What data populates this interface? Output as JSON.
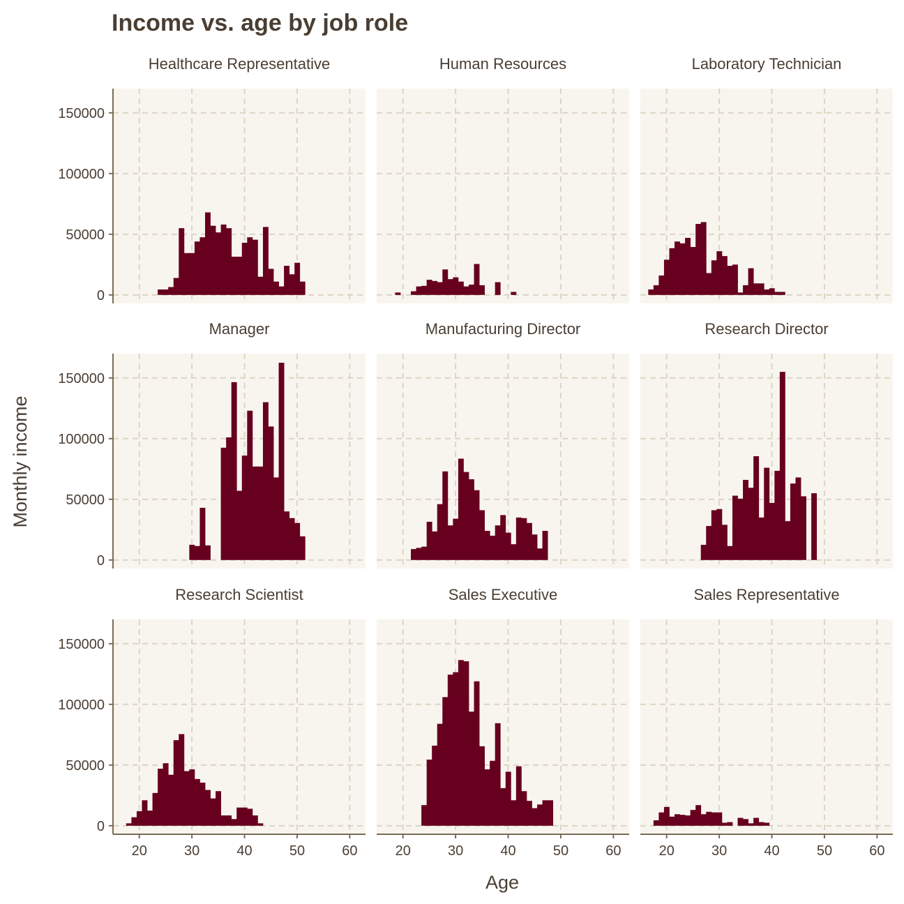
{
  "title": "Income vs. age by job role",
  "colors": {
    "bar": "#67001f",
    "panel_background": "#f8f5ef",
    "grid": "#dcd5c3",
    "axis": "#7a6a55",
    "text": "#4a3e33"
  },
  "chart_data": {
    "type": "bar",
    "title": "Income vs. age by job role",
    "xlabel": "Age",
    "ylabel": "Monthly income",
    "xlim": [
      15,
      63
    ],
    "ylim": [
      -7000,
      170000
    ],
    "x_ticks": [
      20,
      30,
      40,
      50,
      60
    ],
    "y_ticks": [
      0,
      50000,
      100000,
      150000
    ],
    "bin_width": 1,
    "grid": true,
    "panels": [
      {
        "name": "Healthcare Representative",
        "bins": [
          {
            "x": 24,
            "y": 4500
          },
          {
            "x": 25,
            "y": 4500
          },
          {
            "x": 26,
            "y": 6500
          },
          {
            "x": 27,
            "y": 14000
          },
          {
            "x": 28,
            "y": 55000
          },
          {
            "x": 29,
            "y": 34500
          },
          {
            "x": 30,
            "y": 34500
          },
          {
            "x": 31,
            "y": 44000
          },
          {
            "x": 32,
            "y": 47500
          },
          {
            "x": 33,
            "y": 68000
          },
          {
            "x": 34,
            "y": 57000
          },
          {
            "x": 35,
            "y": 51500
          },
          {
            "x": 36,
            "y": 58000
          },
          {
            "x": 37,
            "y": 55000
          },
          {
            "x": 38,
            "y": 31500
          },
          {
            "x": 39,
            "y": 31500
          },
          {
            "x": 40,
            "y": 43000
          },
          {
            "x": 41,
            "y": 47500
          },
          {
            "x": 42,
            "y": 45500
          },
          {
            "x": 43,
            "y": 15000
          },
          {
            "x": 44,
            "y": 56000
          },
          {
            "x": 45,
            "y": 21500
          },
          {
            "x": 46,
            "y": 11000
          },
          {
            "x": 47,
            "y": 7000
          },
          {
            "x": 48,
            "y": 24000
          },
          {
            "x": 49,
            "y": 17000
          },
          {
            "x": 50,
            "y": 26500
          },
          {
            "x": 51,
            "y": 11000
          }
        ]
      },
      {
        "name": "Human Resources",
        "bins": [
          {
            "x": 19,
            "y": 2000
          },
          {
            "x": 22,
            "y": 3000
          },
          {
            "x": 23,
            "y": 7000
          },
          {
            "x": 24,
            "y": 7500
          },
          {
            "x": 25,
            "y": 12500
          },
          {
            "x": 26,
            "y": 11500
          },
          {
            "x": 27,
            "y": 10500
          },
          {
            "x": 28,
            "y": 21000
          },
          {
            "x": 29,
            "y": 13000
          },
          {
            "x": 30,
            "y": 14500
          },
          {
            "x": 31,
            "y": 11000
          },
          {
            "x": 32,
            "y": 7000
          },
          {
            "x": 33,
            "y": 8500
          },
          {
            "x": 34,
            "y": 25500
          },
          {
            "x": 35,
            "y": 8000
          },
          {
            "x": 38,
            "y": 10500
          },
          {
            "x": 41,
            "y": 2500
          }
        ]
      },
      {
        "name": "Laboratory Technician",
        "bins": [
          {
            "x": 17,
            "y": 4500
          },
          {
            "x": 18,
            "y": 8000
          },
          {
            "x": 19,
            "y": 16000
          },
          {
            "x": 20,
            "y": 29000
          },
          {
            "x": 21,
            "y": 38500
          },
          {
            "x": 22,
            "y": 44000
          },
          {
            "x": 23,
            "y": 42500
          },
          {
            "x": 24,
            "y": 47000
          },
          {
            "x": 25,
            "y": 39500
          },
          {
            "x": 26,
            "y": 58500
          },
          {
            "x": 27,
            "y": 60000
          },
          {
            "x": 28,
            "y": 18000
          },
          {
            "x": 29,
            "y": 28500
          },
          {
            "x": 30,
            "y": 36000
          },
          {
            "x": 31,
            "y": 32000
          },
          {
            "x": 32,
            "y": 24000
          },
          {
            "x": 33,
            "y": 25000
          },
          {
            "x": 34,
            "y": 2000
          },
          {
            "x": 35,
            "y": 8000
          },
          {
            "x": 36,
            "y": 22000
          },
          {
            "x": 37,
            "y": 9500
          },
          {
            "x": 38,
            "y": 9500
          },
          {
            "x": 39,
            "y": 4500
          },
          {
            "x": 40,
            "y": 5500
          },
          {
            "x": 41,
            "y": 2500
          },
          {
            "x": 42,
            "y": 2500
          }
        ]
      },
      {
        "name": "Manager",
        "bins": [
          {
            "x": 30,
            "y": 12500
          },
          {
            "x": 31,
            "y": 11500
          },
          {
            "x": 32,
            "y": 43000
          },
          {
            "x": 33,
            "y": 12000
          },
          {
            "x": 36,
            "y": 92500
          },
          {
            "x": 37,
            "y": 101000
          },
          {
            "x": 38,
            "y": 146500
          },
          {
            "x": 39,
            "y": 57000
          },
          {
            "x": 40,
            "y": 86000
          },
          {
            "x": 41,
            "y": 123000
          },
          {
            "x": 42,
            "y": 77000
          },
          {
            "x": 43,
            "y": 77000
          },
          {
            "x": 44,
            "y": 130000
          },
          {
            "x": 45,
            "y": 110000
          },
          {
            "x": 46,
            "y": 68000
          },
          {
            "x": 47,
            "y": 162500
          },
          {
            "x": 48,
            "y": 40000
          },
          {
            "x": 49,
            "y": 34500
          },
          {
            "x": 50,
            "y": 30500
          },
          {
            "x": 51,
            "y": 19500
          }
        ]
      },
      {
        "name": "Manufacturing Director",
        "bins": [
          {
            "x": 22,
            "y": 9000
          },
          {
            "x": 23,
            "y": 10000
          },
          {
            "x": 24,
            "y": 11000
          },
          {
            "x": 25,
            "y": 31500
          },
          {
            "x": 26,
            "y": 23500
          },
          {
            "x": 27,
            "y": 46000
          },
          {
            "x": 28,
            "y": 73000
          },
          {
            "x": 29,
            "y": 28500
          },
          {
            "x": 30,
            "y": 34000
          },
          {
            "x": 31,
            "y": 83500
          },
          {
            "x": 32,
            "y": 72500
          },
          {
            "x": 33,
            "y": 66500
          },
          {
            "x": 34,
            "y": 57500
          },
          {
            "x": 35,
            "y": 41000
          },
          {
            "x": 36,
            "y": 24000
          },
          {
            "x": 37,
            "y": 20000
          },
          {
            "x": 38,
            "y": 28500
          },
          {
            "x": 39,
            "y": 37000
          },
          {
            "x": 40,
            "y": 22500
          },
          {
            "x": 41,
            "y": 13000
          },
          {
            "x": 42,
            "y": 35000
          },
          {
            "x": 43,
            "y": 34500
          },
          {
            "x": 44,
            "y": 30500
          },
          {
            "x": 45,
            "y": 21000
          },
          {
            "x": 46,
            "y": 9500
          },
          {
            "x": 47,
            "y": 24000
          }
        ]
      },
      {
        "name": "Research Director",
        "bins": [
          {
            "x": 27,
            "y": 12500
          },
          {
            "x": 28,
            "y": 28000
          },
          {
            "x": 29,
            "y": 41000
          },
          {
            "x": 30,
            "y": 42000
          },
          {
            "x": 31,
            "y": 29000
          },
          {
            "x": 32,
            "y": 11500
          },
          {
            "x": 33,
            "y": 53000
          },
          {
            "x": 34,
            "y": 50500
          },
          {
            "x": 35,
            "y": 66000
          },
          {
            "x": 36,
            "y": 59500
          },
          {
            "x": 37,
            "y": 85500
          },
          {
            "x": 38,
            "y": 35000
          },
          {
            "x": 39,
            "y": 76000
          },
          {
            "x": 40,
            "y": 47000
          },
          {
            "x": 41,
            "y": 73500
          },
          {
            "x": 42,
            "y": 155000
          },
          {
            "x": 43,
            "y": 32000
          },
          {
            "x": 44,
            "y": 63000
          },
          {
            "x": 45,
            "y": 68000
          },
          {
            "x": 46,
            "y": 52500
          },
          {
            "x": 48,
            "y": 55000
          }
        ]
      },
      {
        "name": "Research Scientist",
        "bins": [
          {
            "x": 18,
            "y": 2000
          },
          {
            "x": 19,
            "y": 7000
          },
          {
            "x": 20,
            "y": 12000
          },
          {
            "x": 21,
            "y": 21000
          },
          {
            "x": 22,
            "y": 12500
          },
          {
            "x": 23,
            "y": 27000
          },
          {
            "x": 24,
            "y": 47000
          },
          {
            "x": 25,
            "y": 51500
          },
          {
            "x": 26,
            "y": 42000
          },
          {
            "x": 27,
            "y": 70500
          },
          {
            "x": 28,
            "y": 75500
          },
          {
            "x": 29,
            "y": 45000
          },
          {
            "x": 30,
            "y": 46500
          },
          {
            "x": 31,
            "y": 38500
          },
          {
            "x": 32,
            "y": 35500
          },
          {
            "x": 33,
            "y": 29500
          },
          {
            "x": 34,
            "y": 22500
          },
          {
            "x": 35,
            "y": 28500
          },
          {
            "x": 36,
            "y": 8500
          },
          {
            "x": 37,
            "y": 8500
          },
          {
            "x": 38,
            "y": 5500
          },
          {
            "x": 39,
            "y": 15000
          },
          {
            "x": 40,
            "y": 15000
          },
          {
            "x": 41,
            "y": 14000
          },
          {
            "x": 42,
            "y": 8500
          },
          {
            "x": 43,
            "y": 2000
          }
        ]
      },
      {
        "name": "Sales Executive",
        "bins": [
          {
            "x": 24,
            "y": 17000
          },
          {
            "x": 25,
            "y": 54500
          },
          {
            "x": 26,
            "y": 66000
          },
          {
            "x": 27,
            "y": 84000
          },
          {
            "x": 28,
            "y": 106000
          },
          {
            "x": 29,
            "y": 124500
          },
          {
            "x": 30,
            "y": 126500
          },
          {
            "x": 31,
            "y": 136500
          },
          {
            "x": 32,
            "y": 135500
          },
          {
            "x": 33,
            "y": 94000
          },
          {
            "x": 34,
            "y": 119000
          },
          {
            "x": 35,
            "y": 65500
          },
          {
            "x": 36,
            "y": 46500
          },
          {
            "x": 37,
            "y": 53500
          },
          {
            "x": 38,
            "y": 84500
          },
          {
            "x": 39,
            "y": 31000
          },
          {
            "x": 40,
            "y": 44500
          },
          {
            "x": 41,
            "y": 21000
          },
          {
            "x": 42,
            "y": 49000
          },
          {
            "x": 43,
            "y": 28500
          },
          {
            "x": 44,
            "y": 20500
          },
          {
            "x": 45,
            "y": 14500
          },
          {
            "x": 46,
            "y": 17500
          },
          {
            "x": 47,
            "y": 21000
          },
          {
            "x": 48,
            "y": 21000
          }
        ]
      },
      {
        "name": "Sales Representative",
        "bins": [
          {
            "x": 18,
            "y": 4500
          },
          {
            "x": 19,
            "y": 11000
          },
          {
            "x": 20,
            "y": 15500
          },
          {
            "x": 21,
            "y": 7500
          },
          {
            "x": 22,
            "y": 9500
          },
          {
            "x": 23,
            "y": 9000
          },
          {
            "x": 24,
            "y": 8500
          },
          {
            "x": 25,
            "y": 13000
          },
          {
            "x": 26,
            "y": 17000
          },
          {
            "x": 27,
            "y": 9500
          },
          {
            "x": 28,
            "y": 11500
          },
          {
            "x": 29,
            "y": 11000
          },
          {
            "x": 30,
            "y": 11000
          },
          {
            "x": 31,
            "y": 2500
          },
          {
            "x": 32,
            "y": 3000
          },
          {
            "x": 34,
            "y": 6500
          },
          {
            "x": 35,
            "y": 5500
          },
          {
            "x": 36,
            "y": 2000
          },
          {
            "x": 37,
            "y": 6500
          },
          {
            "x": 38,
            "y": 3000
          },
          {
            "x": 39,
            "y": 2500
          }
        ]
      }
    ]
  }
}
